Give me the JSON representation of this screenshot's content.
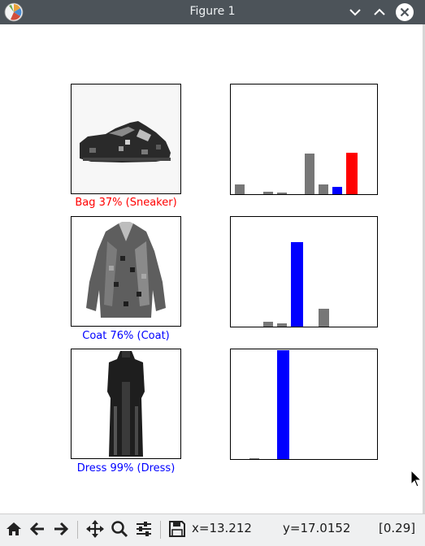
{
  "window": {
    "title": "Figure 1"
  },
  "colors": {
    "correct": "#0000ff",
    "wrong": "#ff0000",
    "neutral": "#777777"
  },
  "panels": [
    {
      "caption": "Bag 37% (Sneaker)",
      "status": "wrong",
      "values": [
        0.08,
        0.0,
        0.02,
        0.015,
        0.0,
        0.37,
        0.08,
        0.06,
        0.37,
        0.0
      ],
      "predicted": 8,
      "true_label": 7
    },
    {
      "caption": "Coat 76% (Coat)",
      "status": "correct",
      "values": [
        0.0,
        0.0,
        0.04,
        0.03,
        0.76,
        0.0,
        0.16,
        0.0,
        0.0,
        0.0
      ],
      "predicted": 4,
      "true_label": 4
    },
    {
      "caption": "Dress 99% (Dress)",
      "status": "correct",
      "values": [
        0.0,
        0.005,
        0.0,
        0.99,
        0.0,
        0.0,
        0.0,
        0.0,
        0.0,
        0.0
      ],
      "predicted": 3,
      "true_label": 3
    }
  ],
  "toolbar": {
    "tools": [
      "home-icon",
      "back-icon",
      "forward-icon",
      "pan-icon",
      "zoom-icon",
      "configure-icon",
      "save-icon"
    ],
    "status_x": "x=13.212",
    "status_y": "y=17.0152",
    "status_value": "[0.29]"
  }
}
